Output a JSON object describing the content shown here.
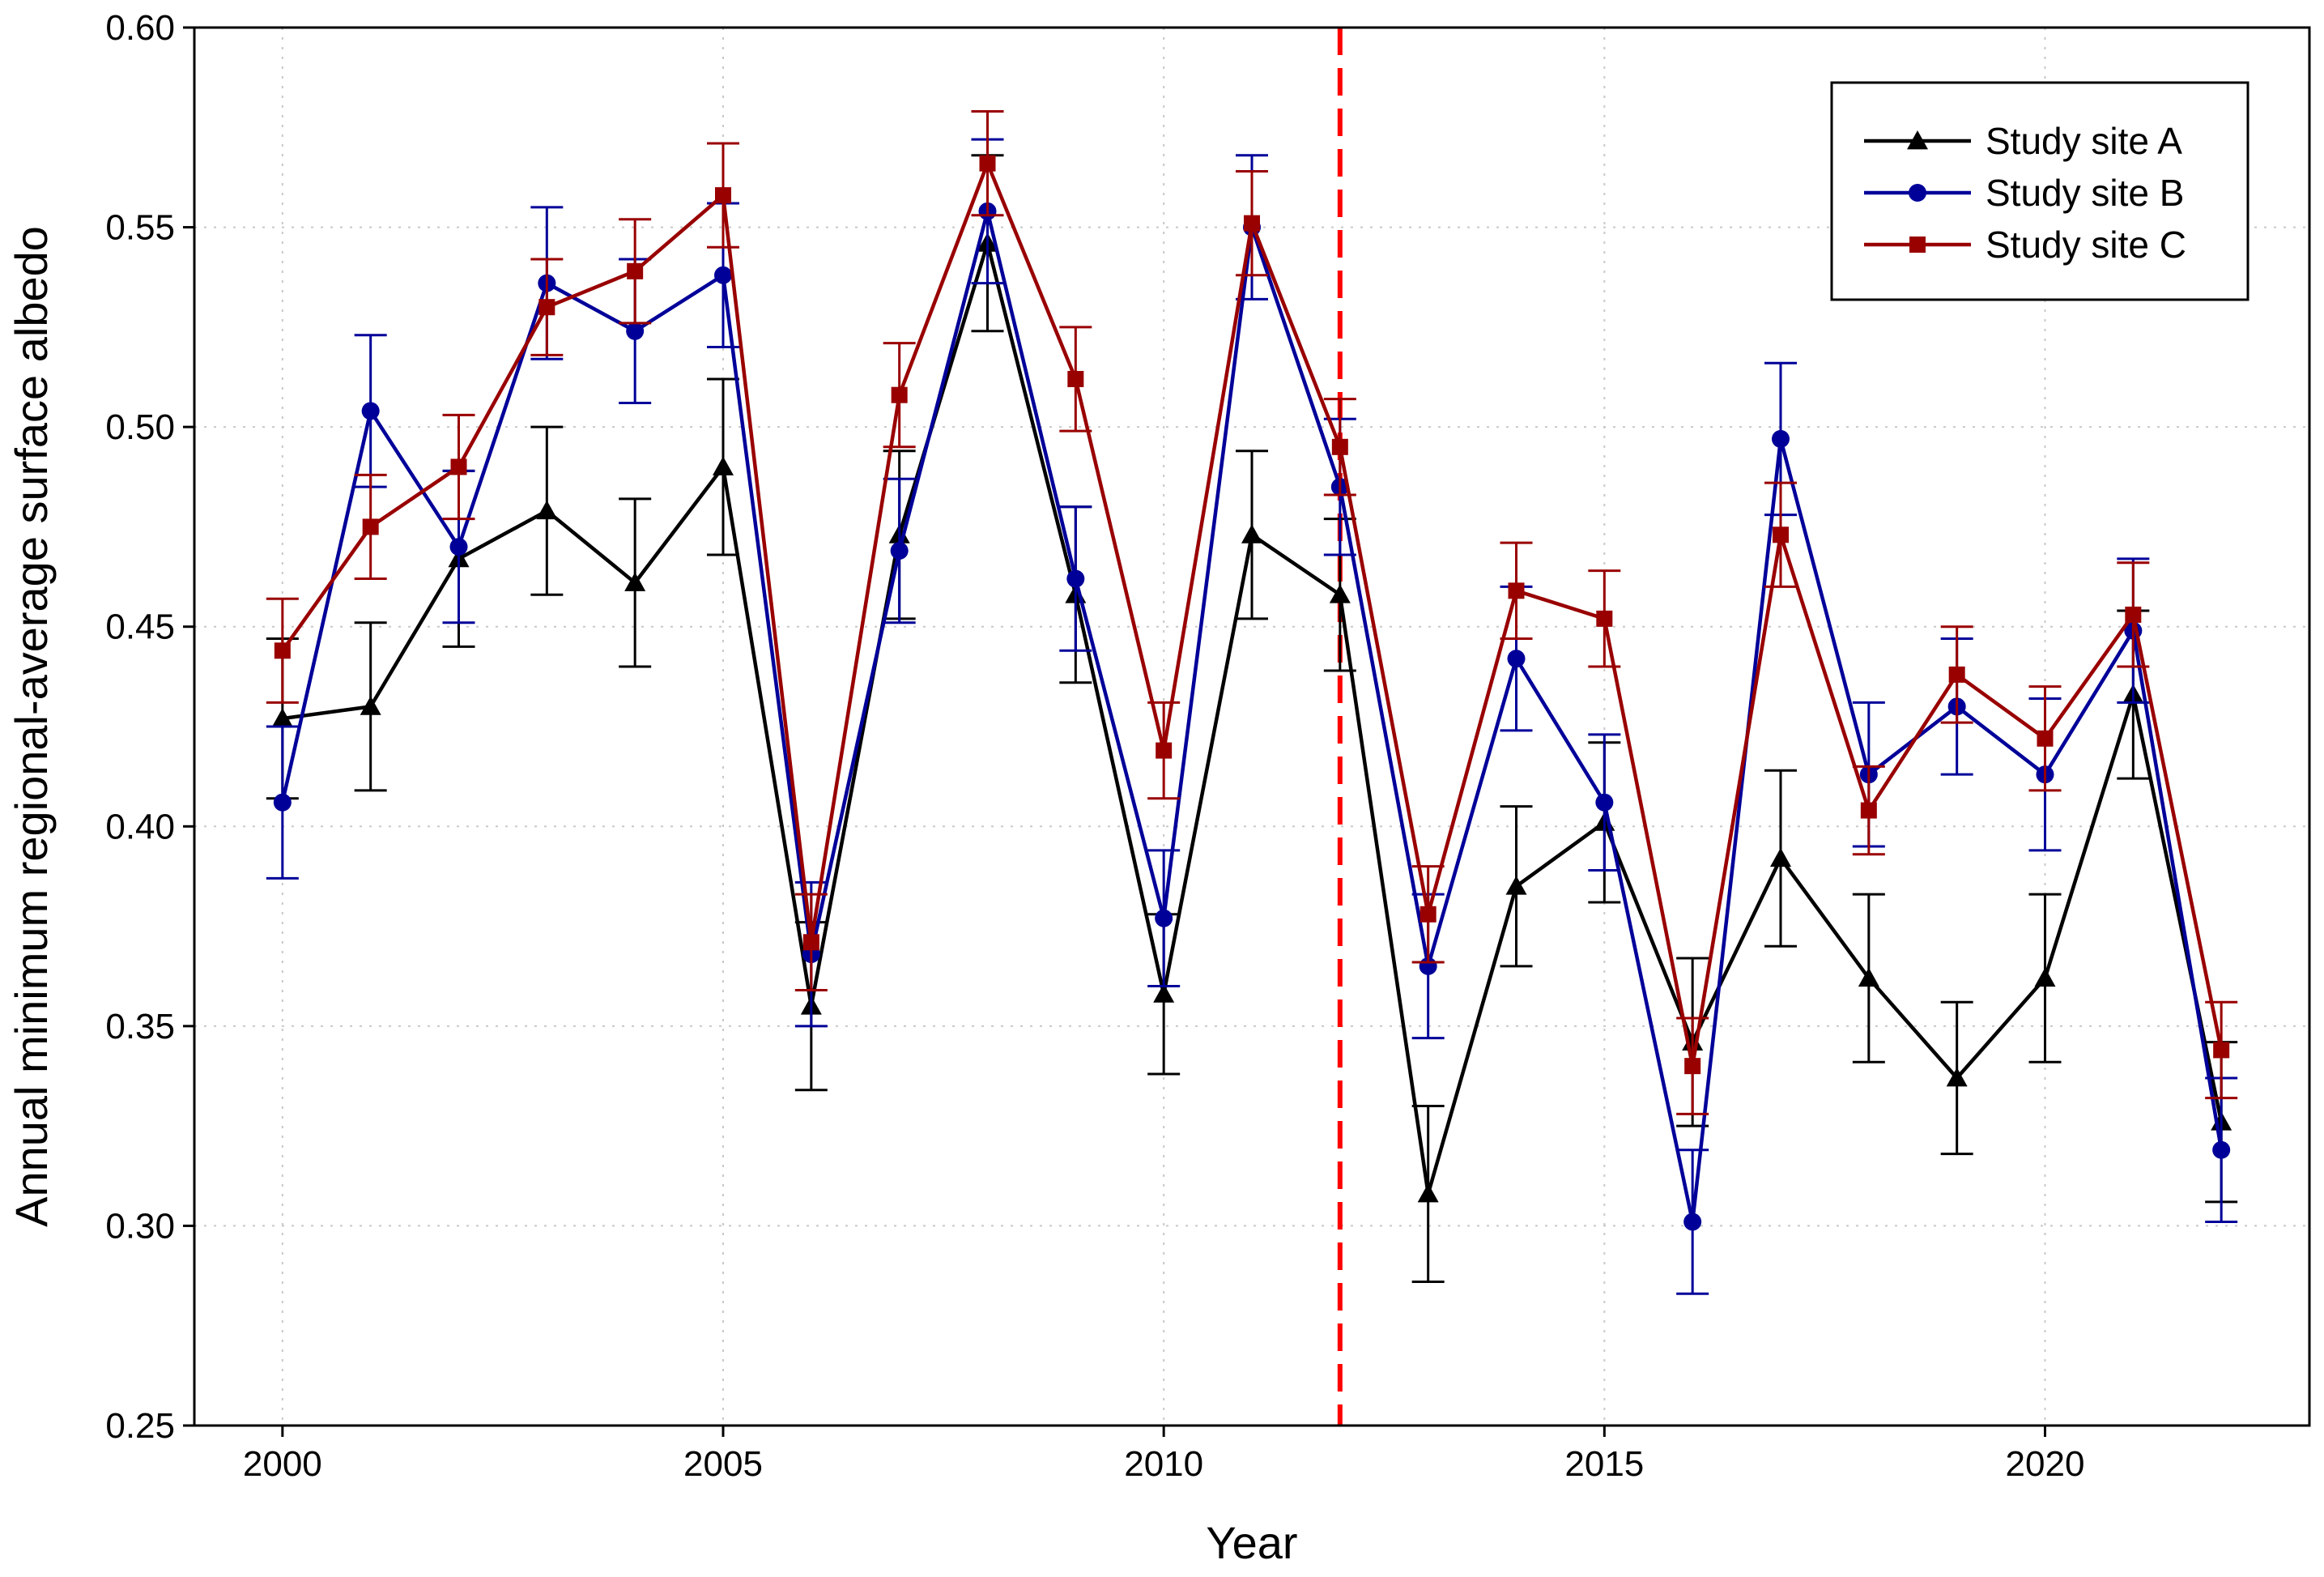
{
  "chart_data": {
    "type": "line",
    "xlabel": "Year",
    "ylabel": "Annual minimum regional-average surface albedo",
    "xlim": [
      1999,
      2023
    ],
    "ylim": [
      0.25,
      0.6
    ],
    "x_ticks": [
      2000,
      2005,
      2010,
      2015,
      2020
    ],
    "y_ticks": [
      "0.25",
      "0.30",
      "0.35",
      "0.40",
      "0.45",
      "0.50",
      "0.55",
      "0.60"
    ],
    "grid": true,
    "legend_position": "top-right",
    "reference_line": {
      "x": 2012,
      "color": "#ff0000",
      "style": "dashed"
    },
    "x": [
      2000,
      2001,
      2002,
      2003,
      2004,
      2005,
      2006,
      2007,
      2008,
      2009,
      2010,
      2011,
      2012,
      2013,
      2014,
      2015,
      2016,
      2017,
      2018,
      2019,
      2020,
      2021,
      2022
    ],
    "series": [
      {
        "name": "Study site A",
        "color": "#000000",
        "marker": "triangle",
        "values": [
          0.427,
          0.43,
          0.467,
          0.479,
          0.461,
          0.49,
          0.355,
          0.473,
          0.546,
          0.458,
          0.358,
          0.473,
          0.458,
          0.308,
          0.385,
          0.401,
          0.346,
          0.392,
          0.362,
          0.337,
          0.362,
          0.433,
          0.326
        ],
        "errors": [
          0.02,
          0.021,
          0.022,
          0.021,
          0.021,
          0.022,
          0.021,
          0.021,
          0.022,
          0.022,
          0.02,
          0.021,
          0.019,
          0.022,
          0.02,
          0.02,
          0.021,
          0.022,
          0.021,
          0.019,
          0.021,
          0.021,
          0.02
        ]
      },
      {
        "name": "Study site B",
        "color": "#000099",
        "marker": "circle",
        "values": [
          0.406,
          0.504,
          0.47,
          0.536,
          0.524,
          0.538,
          0.368,
          0.469,
          0.554,
          0.462,
          0.377,
          0.55,
          0.485,
          0.365,
          0.442,
          0.406,
          0.301,
          0.497,
          0.413,
          0.43,
          0.413,
          0.449,
          0.319
        ],
        "errors": [
          0.019,
          0.019,
          0.019,
          0.019,
          0.018,
          0.018,
          0.018,
          0.018,
          0.018,
          0.018,
          0.017,
          0.018,
          0.017,
          0.018,
          0.018,
          0.017,
          0.018,
          0.019,
          0.018,
          0.017,
          0.019,
          0.018,
          0.018
        ]
      },
      {
        "name": "Study site C",
        "color": "#990000",
        "marker": "square",
        "values": [
          0.444,
          0.475,
          0.49,
          0.53,
          0.539,
          0.558,
          0.371,
          0.508,
          0.566,
          0.512,
          0.419,
          0.551,
          0.495,
          0.378,
          0.459,
          0.452,
          0.34,
          0.473,
          0.404,
          0.438,
          0.422,
          0.453,
          0.344
        ],
        "errors": [
          0.013,
          0.013,
          0.013,
          0.012,
          0.013,
          0.013,
          0.012,
          0.013,
          0.013,
          0.013,
          0.012,
          0.013,
          0.012,
          0.012,
          0.012,
          0.012,
          0.012,
          0.013,
          0.011,
          0.012,
          0.013,
          0.013,
          0.012
        ]
      }
    ]
  }
}
